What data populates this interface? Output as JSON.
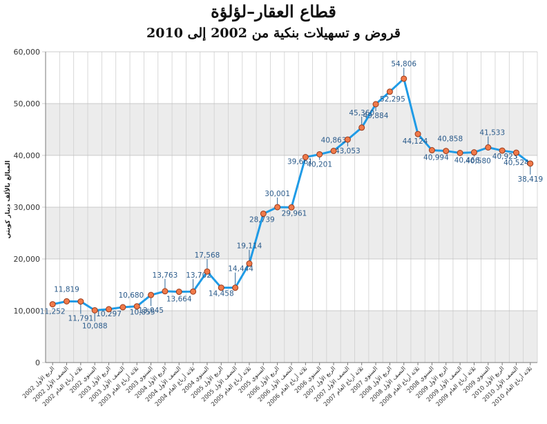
{
  "header": {
    "title": "قطاع العقار–لؤلؤة",
    "subtitle": "قروض و تسهيلات بنكية من 2002 إلى 2010"
  },
  "chart_data": {
    "type": "line",
    "ylabel": "المبالغ بالألف دينار كويتي",
    "ylim": [
      0,
      60000
    ],
    "yticks": [
      0,
      10000,
      20000,
      30000,
      40000,
      50000,
      60000
    ],
    "ytick_labels": [
      "0",
      "10,000",
      "20,000",
      "30,000",
      "40,000",
      "50,000",
      "60,000"
    ],
    "grid": true,
    "line_color": "#1f9be6",
    "marker_color": "#f07a4a",
    "band_color": "#ececec",
    "categories": [
      "2002 الربع الأول",
      "2002 النصف الأول",
      "2002 ثلاثة أرباع العام",
      "2002 السنوي",
      "2003 الربع الأول",
      "2003 النصف الأول",
      "2003 ثلاثة أرباع العام",
      "2003 السنوي",
      "2004 الربع الأول",
      "2004 النصف الأول",
      "2004 ثلاثة أرباع العام",
      "2004 السنوي",
      "2005 الربع الأول",
      "2005 النصف الأول",
      "2005 ثلاثة أرباع العام",
      "2005 السنوي",
      "2006 الربع الأول",
      "2006 النصف الأول",
      "2006 ثلاثة أرباع العام",
      "2006 السنوي",
      "2007 الربع الأول",
      "2007 النصف الأول",
      "2007 ثلاثة أرباع العام",
      "2007 السنوي",
      "2008 الربع الأول",
      "2008 النصف الأول",
      "2008 ثلاثة أرباع العام",
      "2008 السنوي",
      "2009 الربع الأول",
      "2009 النصف الأول",
      "2009 ثلاثة أرباع العام",
      "2009 السنوي",
      "2010 الربع الأول",
      "2010 النصف الأول",
      "2010 ثلاثة أرباع العام"
    ],
    "values": [
      11252,
      11819,
      11791,
      10088,
      10297,
      10680,
      10855,
      13045,
      13763,
      13664,
      13702,
      17568,
      14458,
      14444,
      19114,
      28739,
      30001,
      29961,
      39661,
      40201,
      40863,
      43053,
      45360,
      49884,
      52295,
      54806,
      44124,
      40994,
      40858,
      40466,
      40580,
      41533,
      40923,
      40524,
      38419
    ],
    "data_labels": [
      "11,252",
      "11,819",
      "11,791",
      "10,088",
      "10,297",
      "10,680",
      "10,855",
      "13,045",
      "13,763",
      "13,664",
      "13,702",
      "17,568",
      "14,458",
      "14,444",
      "19,114",
      "28,739",
      "30,001",
      "29,961",
      "39,661",
      "40,201",
      "40,863",
      "43,053",
      "45,360",
      "49,884",
      "52,295",
      "54,806",
      "44,124",
      "40,994",
      "40,858",
      "40,466",
      "40,580",
      "41,533",
      "40,923",
      "40,524",
      "38,419"
    ]
  }
}
